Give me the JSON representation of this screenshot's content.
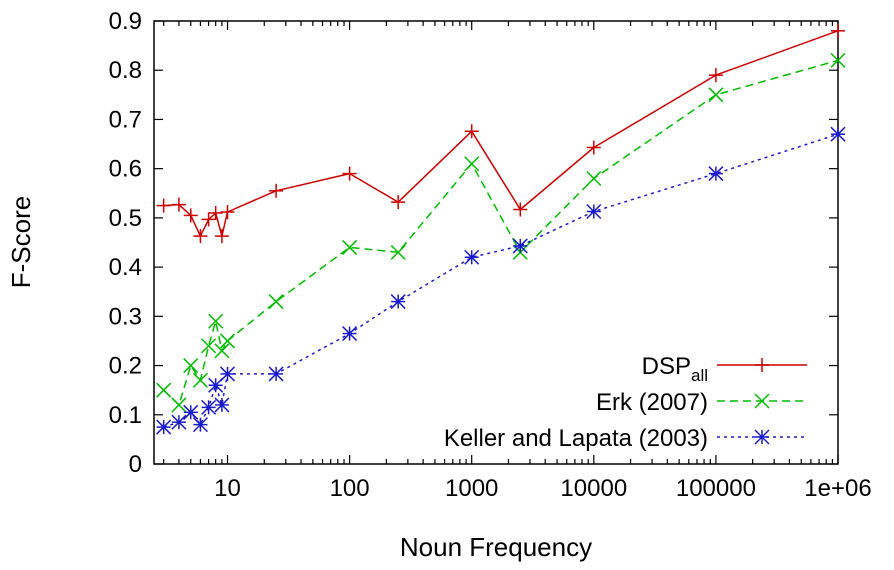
{
  "chart_data": {
    "type": "line",
    "xlabel": "Noun Frequency",
    "ylabel": "F-Score",
    "x_scale": "log",
    "xlim": [
      2.5,
      1000000
    ],
    "ylim": [
      0,
      0.9
    ],
    "x_ticks": [
      {
        "value": 10,
        "label": "10"
      },
      {
        "value": 100,
        "label": "100"
      },
      {
        "value": 1000,
        "label": "1000"
      },
      {
        "value": 10000,
        "label": "10000"
      },
      {
        "value": 100000,
        "label": "100000"
      },
      {
        "value": 1000000,
        "label": "1e+06"
      }
    ],
    "y_ticks": [
      {
        "value": 0,
        "label": "0"
      },
      {
        "value": 0.1,
        "label": "0.1"
      },
      {
        "value": 0.2,
        "label": "0.2"
      },
      {
        "value": 0.3,
        "label": "0.3"
      },
      {
        "value": 0.4,
        "label": "0.4"
      },
      {
        "value": 0.5,
        "label": "0.5"
      },
      {
        "value": 0.6,
        "label": "0.6"
      },
      {
        "value": 0.7,
        "label": "0.7"
      },
      {
        "value": 0.8,
        "label": "0.8"
      },
      {
        "value": 0.9,
        "label": "0.9"
      }
    ],
    "legend_position": "bottom-right",
    "grid": false,
    "series": [
      {
        "name": "DSP",
        "name_sub": "all",
        "color": "#cc0000",
        "dash": "solid",
        "marker": "plus",
        "points": [
          [
            3,
            0.525
          ],
          [
            4,
            0.527
          ],
          [
            5,
            0.505
          ],
          [
            6,
            0.463
          ],
          [
            7,
            0.497
          ],
          [
            8,
            0.51
          ],
          [
            9,
            0.463
          ],
          [
            10,
            0.512
          ],
          [
            25,
            0.555
          ],
          [
            100,
            0.59
          ],
          [
            250,
            0.532
          ],
          [
            1000,
            0.676
          ],
          [
            2500,
            0.517
          ],
          [
            10000,
            0.643
          ],
          [
            100000,
            0.79
          ],
          [
            1000000,
            0.88
          ]
        ]
      },
      {
        "name": "Erk (2007)",
        "name_sub": "",
        "color": "#00bb00",
        "dash": "dashed",
        "marker": "cross",
        "points": [
          [
            3,
            0.15
          ],
          [
            4,
            0.12
          ],
          [
            5,
            0.2
          ],
          [
            6,
            0.17
          ],
          [
            7,
            0.24
          ],
          [
            8,
            0.29
          ],
          [
            9,
            0.23
          ],
          [
            10,
            0.25
          ],
          [
            25,
            0.33
          ],
          [
            100,
            0.44
          ],
          [
            250,
            0.43
          ],
          [
            1000,
            0.61
          ],
          [
            2500,
            0.43
          ],
          [
            10000,
            0.58
          ],
          [
            100000,
            0.75
          ],
          [
            1000000,
            0.82
          ]
        ]
      },
      {
        "name": "Keller and Lapata (2003)",
        "name_sub": "",
        "color": "#1a1acc",
        "dash": "dotted",
        "marker": "star",
        "points": [
          [
            3,
            0.075
          ],
          [
            4,
            0.085
          ],
          [
            5,
            0.105
          ],
          [
            6,
            0.08
          ],
          [
            7,
            0.115
          ],
          [
            8,
            0.16
          ],
          [
            9,
            0.12
          ],
          [
            10,
            0.183
          ],
          [
            25,
            0.183
          ],
          [
            100,
            0.265
          ],
          [
            250,
            0.33
          ],
          [
            1000,
            0.42
          ],
          [
            2500,
            0.443
          ],
          [
            10000,
            0.513
          ],
          [
            100000,
            0.59
          ],
          [
            1000000,
            0.67
          ]
        ]
      }
    ]
  }
}
